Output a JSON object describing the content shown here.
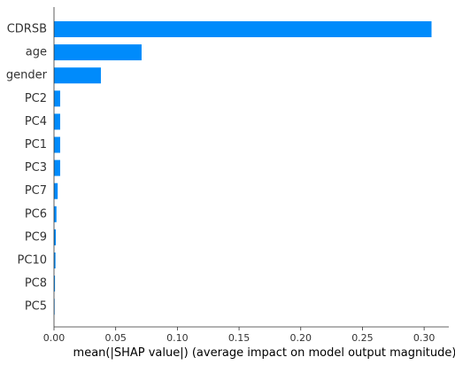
{
  "chart_data": {
    "type": "bar",
    "orientation": "horizontal",
    "categories": [
      "CDRSB",
      "age",
      "gender",
      "PC2",
      "PC4",
      "PC1",
      "PC3",
      "PC7",
      "PC6",
      "PC9",
      "PC10",
      "PC8",
      "PC5"
    ],
    "values": [
      0.306,
      0.071,
      0.038,
      0.005,
      0.005,
      0.005,
      0.005,
      0.003,
      0.002,
      0.0015,
      0.0012,
      0.0008,
      0.0005
    ],
    "xlabel": "mean(|SHAP value|) (average impact on model output magnitude)",
    "xlim": [
      0,
      0.32
    ],
    "xticks": [
      0.0,
      0.05,
      0.1,
      0.15,
      0.2,
      0.25,
      0.3
    ],
    "xtick_labels": [
      "0.00",
      "0.05",
      "0.10",
      "0.15",
      "0.20",
      "0.25",
      "0.30"
    ],
    "grid": false,
    "bar_color": "#008bfb",
    "axis_color": "#333333"
  }
}
